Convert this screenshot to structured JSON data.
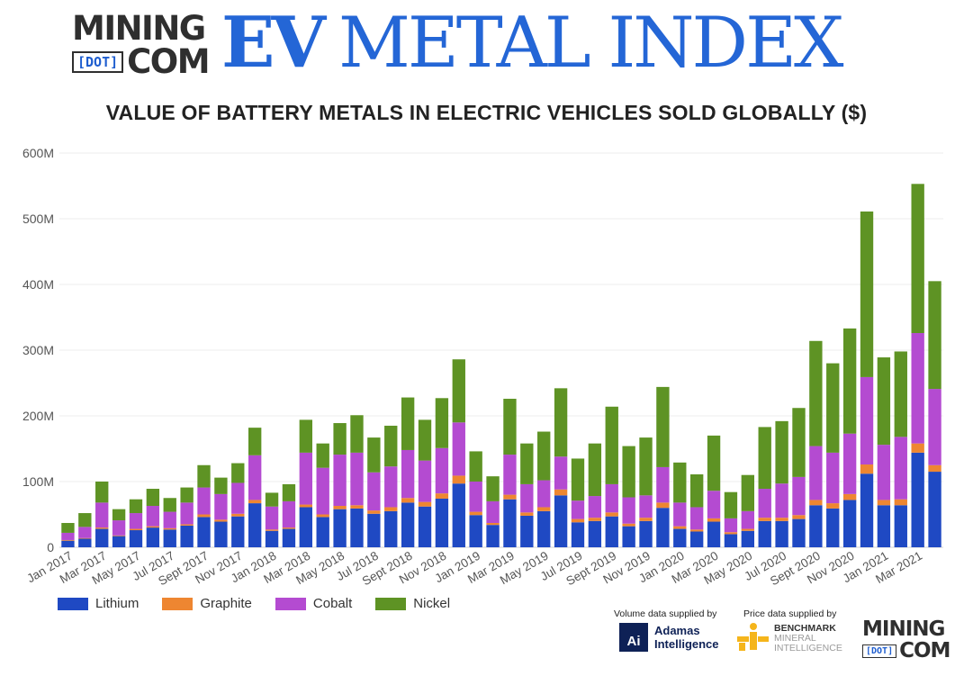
{
  "header": {
    "brand_line1": "MINING",
    "brand_dot": "[DOT]",
    "brand_line2": "COM",
    "ev": "EV",
    "index_title": "METAL INDEX"
  },
  "colors": {
    "lithium": "#1f49c3",
    "graphite": "#ee8631",
    "cobalt": "#b44bd1",
    "nickel": "#5e9324",
    "brand_blue": "#2466d6"
  },
  "chart_data": {
    "type": "bar",
    "stacked": true,
    "title": "VALUE OF BATTERY METALS IN ELECTRIC VEHICLES SOLD GLOBALLY ($)",
    "xlabel": "",
    "ylabel": "",
    "ylim": [
      0,
      600000000
    ],
    "yticks": [
      0,
      100000000,
      200000000,
      300000000,
      400000000,
      500000000,
      600000000
    ],
    "ytick_labels": [
      "0",
      "100M",
      "200M",
      "300M",
      "400M",
      "500M",
      "600M"
    ],
    "grid": true,
    "legend_position": "bottom-left",
    "categories": [
      "Jan 2017",
      "Feb 2017",
      "Mar 2017",
      "Apr 2017",
      "May 2017",
      "Jun 2017",
      "Jul 2017",
      "Aug 2017",
      "Sept 2017",
      "Oct 2017",
      "Nov 2017",
      "Dec 2017",
      "Jan 2018",
      "Feb 2018",
      "Mar 2018",
      "Apr 2018",
      "May 2018",
      "Jun 2018",
      "Jul 2018",
      "Aug 2018",
      "Sept 2018",
      "Oct 2018",
      "Nov 2018",
      "Dec 2018",
      "Jan 2019",
      "Feb 2019",
      "Mar 2019",
      "Apr 2019",
      "May 2019",
      "Jun 2019",
      "Jul 2019",
      "Aug 2019",
      "Sept 2019",
      "Oct 2019",
      "Nov 2019",
      "Dec 2019",
      "Jan 2020",
      "Feb 2020",
      "Mar 2020",
      "Apr 2020",
      "May 2020",
      "Jun 2020",
      "Jul 2020",
      "Aug 2020",
      "Sept 2020",
      "Oct 2020",
      "Nov 2020",
      "Dec 2020",
      "Jan 2021",
      "Feb 2021",
      "Mar 2021",
      "Apr 2021"
    ],
    "tick_labels": [
      "Jan 2017",
      "",
      "Mar 2017",
      "",
      "May 2017",
      "",
      "Jul 2017",
      "",
      "Sept 2017",
      "",
      "Nov 2017",
      "",
      "Jan 2018",
      "",
      "Mar 2018",
      "",
      "May 2018",
      "",
      "Jul 2018",
      "",
      "Sept 2018",
      "",
      "Nov 2018",
      "",
      "Jan 2019",
      "",
      "Mar 2019",
      "",
      "May 2019",
      "",
      "Jul 2019",
      "",
      "Sept 2019",
      "",
      "Nov 2019",
      "",
      "Jan 2020",
      "",
      "Mar 2020",
      "",
      "May 2020",
      "",
      "Jul 2020",
      "",
      "Sept 2020",
      "",
      "Nov 2020",
      "",
      "Jan 2021",
      "",
      "Mar 2021",
      ""
    ],
    "series": [
      {
        "name": "Lithium",
        "color": "#1f49c3",
        "values": [
          10,
          13,
          28,
          17,
          26,
          30,
          27,
          33,
          46,
          39,
          47,
          67,
          25,
          28,
          61,
          46,
          58,
          59,
          51,
          55,
          68,
          62,
          74,
          97,
          49,
          34,
          73,
          48,
          55,
          79,
          38,
          40,
          47,
          32,
          40,
          60,
          28,
          24,
          39,
          20,
          25,
          40,
          40,
          43,
          64,
          59,
          72,
          112,
          64,
          64,
          144,
          115
        ]
      },
      {
        "name": "Graphite",
        "color": "#ee8631",
        "values": [
          1,
          1,
          2,
          1,
          2,
          2,
          2,
          2,
          4,
          3,
          4,
          5,
          2,
          2,
          4,
          4,
          5,
          5,
          5,
          6,
          7,
          7,
          8,
          12,
          5,
          3,
          7,
          5,
          6,
          9,
          5,
          5,
          6,
          4,
          5,
          8,
          4,
          3,
          5,
          3,
          3,
          5,
          5,
          6,
          8,
          8,
          9,
          14,
          8,
          9,
          14,
          10
        ]
      },
      {
        "name": "Cobalt",
        "color": "#b44bd1",
        "values": [
          11,
          17,
          38,
          23,
          24,
          31,
          25,
          33,
          41,
          39,
          47,
          68,
          35,
          40,
          79,
          71,
          78,
          80,
          58,
          62,
          73,
          63,
          69,
          81,
          46,
          33,
          61,
          43,
          41,
          50,
          28,
          33,
          43,
          40,
          34,
          54,
          36,
          34,
          42,
          21,
          27,
          44,
          52,
          58,
          82,
          77,
          92,
          133,
          84,
          95,
          168,
          116
        ]
      },
      {
        "name": "Nickel",
        "color": "#5e9324",
        "values": [
          15,
          21,
          32,
          17,
          21,
          26,
          21,
          23,
          34,
          25,
          30,
          42,
          21,
          26,
          50,
          37,
          48,
          57,
          53,
          62,
          80,
          62,
          76,
          96,
          46,
          38,
          85,
          62,
          74,
          104,
          64,
          80,
          118,
          78,
          88,
          122,
          61,
          50,
          84,
          40,
          55,
          94,
          95,
          105,
          160,
          136,
          160,
          252,
          133,
          130,
          227,
          164
        ]
      }
    ],
    "totals_millions": [
      37,
      52,
      100,
      58,
      73,
      89,
      75,
      91,
      125,
      106,
      128,
      182,
      83,
      96,
      194,
      158,
      189,
      201,
      167,
      185,
      228,
      194,
      227,
      286,
      146,
      108,
      226,
      158,
      176,
      242,
      135,
      158,
      214,
      154,
      167,
      244,
      129,
      111,
      170,
      84,
      110,
      183,
      192,
      212,
      314,
      280,
      333,
      511,
      289,
      298,
      553,
      405
    ],
    "unit": "millions USD"
  },
  "legend": [
    {
      "label": "Lithium",
      "color": "#1f49c3"
    },
    {
      "label": "Graphite",
      "color": "#ee8631"
    },
    {
      "label": "Cobalt",
      "color": "#b44bd1"
    },
    {
      "label": "Nickel",
      "color": "#5e9324"
    }
  ],
  "credits": {
    "volume_text": "Volume data supplied by",
    "price_text": "Price data supplied by",
    "adamas_mark": "Ai",
    "adamas_line1": "Adamas",
    "adamas_line2": "Intelligence",
    "bench_line1": "BENCHMARK",
    "bench_line2": "MINERAL",
    "bench_line3": "INTELLIGENCE"
  },
  "footer_logo": {
    "line1": "MINING",
    "dot": "[DOT]",
    "line2": "COM"
  }
}
